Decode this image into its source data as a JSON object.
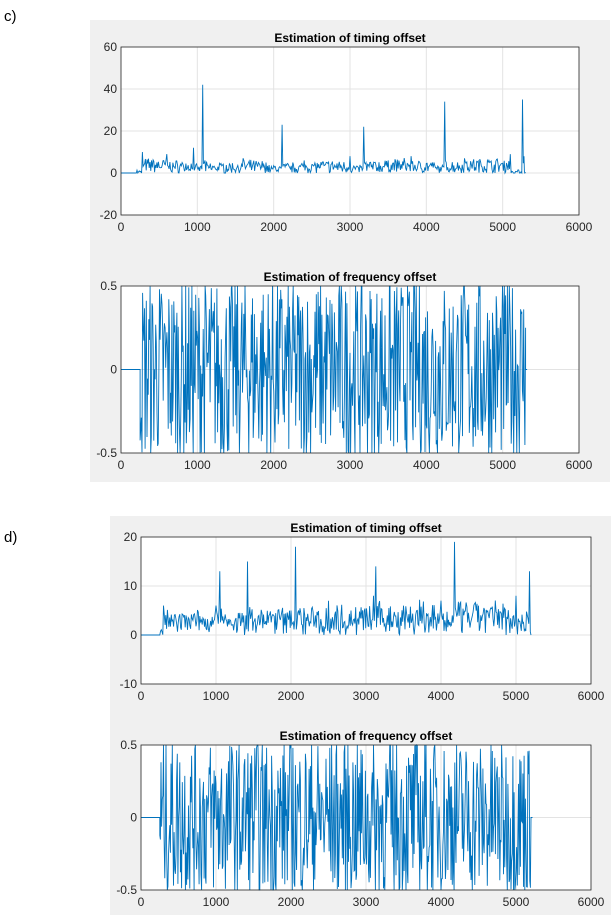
{
  "panels": [
    {
      "label": "c)"
    },
    {
      "label": "d)"
    }
  ],
  "colors": {
    "line": "#0072bd",
    "grid": "#e3e3e3",
    "axes": "#262626",
    "figure_bg": "#f0f0f0",
    "plot_bg": "#ffffff"
  },
  "chart_data": [
    {
      "type": "line",
      "panel": "c",
      "title": "Estimation of timing offset",
      "xlabel": "",
      "ylabel": "",
      "xlim": [
        0,
        6000
      ],
      "ylim": [
        -20,
        60
      ],
      "xticks": [
        "0",
        "1000",
        "2000",
        "3000",
        "4000",
        "5000",
        "6000"
      ],
      "yticks": [
        "-20",
        "0",
        "20",
        "40",
        "60"
      ],
      "grid": true,
      "series": [
        {
          "x": [
            0,
            200,
            280,
            400,
            600,
            800,
            950,
            1040,
            1070,
            1100,
            1300,
            1600,
            1900,
            2080,
            2110,
            2140,
            2400,
            2700,
            3000,
            3150,
            3180,
            3210,
            3500,
            3800,
            4100,
            4220,
            4240,
            4260,
            4500,
            4800,
            5100,
            5230,
            5260,
            5280,
            5290,
            5300
          ],
          "y": [
            0,
            0,
            10,
            6,
            9,
            5,
            12,
            3,
            42,
            6,
            4,
            7,
            5,
            3,
            23,
            4,
            6,
            5,
            8,
            3,
            22,
            5,
            6,
            8,
            5,
            3,
            34,
            5,
            7,
            6,
            9,
            0,
            35,
            8,
            0,
            0
          ]
        }
      ]
    },
    {
      "type": "line",
      "panel": "c",
      "title": "Estimation of frequency offset",
      "xlabel": "",
      "ylabel": "",
      "xlim": [
        0,
        6000
      ],
      "ylim": [
        -0.5,
        0.5
      ],
      "xticks": [
        "0",
        "1000",
        "2000",
        "3000",
        "4000",
        "5000",
        "6000"
      ],
      "yticks": [
        "-0.5",
        "0",
        "0.5"
      ],
      "grid": true,
      "series": [
        {
          "x": [
            0,
            250,
            5300,
            6000
          ],
          "y": [
            0,
            0,
            0.25,
            0
          ],
          "note_oscillation": "dense"
        }
      ]
    },
    {
      "type": "line",
      "panel": "d",
      "title": "Estimation of timing offset",
      "xlabel": "",
      "ylabel": "",
      "xlim": [
        0,
        6000
      ],
      "ylim": [
        -10,
        20
      ],
      "xticks": [
        "0",
        "1000",
        "2000",
        "3000",
        "4000",
        "5000",
        "6000"
      ],
      "yticks": [
        "-10",
        "0",
        "10",
        "20"
      ],
      "grid": true,
      "series": [
        {
          "x": [
            0,
            250,
            300,
            600,
            1000,
            1050,
            1400,
            1420,
            2000,
            2060,
            2100,
            2500,
            2800,
            3100,
            3130,
            3500,
            4000,
            4150,
            4180,
            4500,
            5000,
            5150,
            5180,
            5200
          ],
          "y": [
            0,
            0,
            6,
            4,
            6,
            13,
            4,
            15,
            5,
            18,
            5,
            7,
            5,
            8,
            14,
            6,
            7,
            4,
            19,
            6,
            8,
            4,
            13,
            0
          ]
        }
      ]
    },
    {
      "type": "line",
      "panel": "d",
      "title": "Estimation of frequency offset",
      "xlabel": "",
      "ylabel": "",
      "xlim": [
        0,
        6000
      ],
      "ylim": [
        -0.5,
        0.5
      ],
      "xticks": [
        "0",
        "1000",
        "2000",
        "3000",
        "4000",
        "5000",
        "6000"
      ],
      "yticks": [
        "-0.5",
        "0",
        "0.5"
      ],
      "grid": true,
      "series": [
        {
          "x": [
            0,
            250,
            5200,
            6000
          ],
          "y": [
            0,
            0,
            0,
            0
          ],
          "note_oscillation": "dense"
        }
      ]
    }
  ]
}
